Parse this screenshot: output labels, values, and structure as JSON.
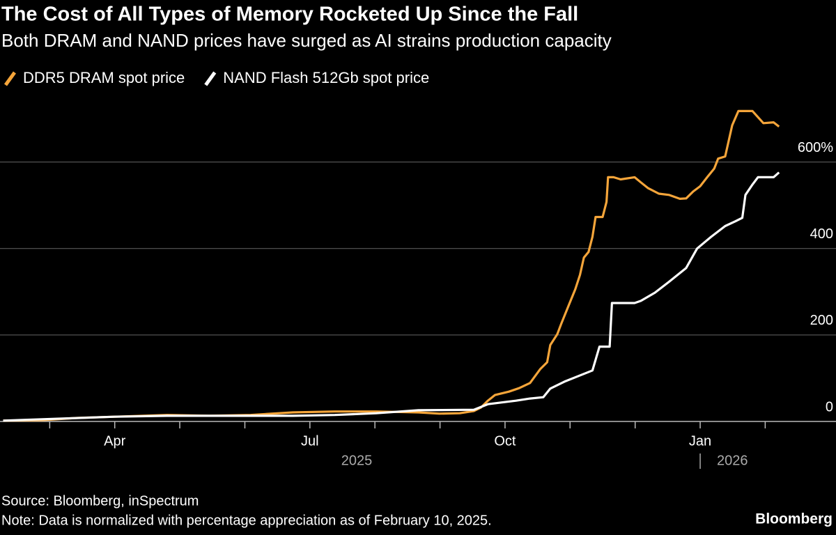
{
  "chart_data": {
    "type": "line",
    "title": "The Cost of All Types of Memory Rocketed Up Since the Fall",
    "subtitle": "Both DRAM and NAND prices have surged as AI strains production capacity",
    "source": "Source: Bloomberg, inSpectrum",
    "note": "Note: Data is normalized with percentage appreciation as of February 10, 2025.",
    "brand": "Bloomberg",
    "xlim": [
      2025.103,
      2026.174
    ],
    "ylim": [
      0,
      730
    ],
    "yticks": [
      0,
      200,
      400,
      {
        "value": 600,
        "label": "600%"
      }
    ],
    "xticks": [
      {
        "value": 2025.1667,
        "label": null
      },
      {
        "value": 2025.25,
        "label": "Apr"
      },
      {
        "value": 2025.3333,
        "label": null
      },
      {
        "value": 2025.4167,
        "label": null
      },
      {
        "value": 2025.5,
        "label": "Jul"
      },
      {
        "value": 2025.5833,
        "label": null
      },
      {
        "value": 2025.6667,
        "label": null
      },
      {
        "value": 2025.75,
        "label": "Oct"
      },
      {
        "value": 2025.8333,
        "label": null
      },
      {
        "value": 2025.9167,
        "label": null
      },
      {
        "value": 2026.0,
        "label": "Jan"
      },
      {
        "value": 2026.0833,
        "label": null
      }
    ],
    "x_year_labels": [
      {
        "value": 2025.56,
        "label": "2025"
      },
      {
        "value": 2026.0,
        "label": "2026"
      }
    ],
    "grid": true,
    "legend": "top-left",
    "series": [
      {
        "name": "DDR5 DRAM spot price",
        "color": "#f5a53a",
        "x": [
          2025.107,
          2025.157,
          2025.201,
          2025.25,
          2025.317,
          2025.371,
          2025.424,
          2025.478,
          2025.532,
          2025.585,
          2025.639,
          2025.666,
          2025.692,
          2025.71,
          2025.719,
          2025.728,
          2025.737,
          2025.755,
          2025.768,
          2025.782,
          2025.795,
          2025.804,
          2025.808,
          2025.817,
          2025.822,
          2025.831,
          2025.84,
          2025.846,
          2025.851,
          2025.857,
          2025.862,
          2025.866,
          2025.875,
          2025.88,
          2025.882,
          2025.889,
          2025.898,
          2025.916,
          2025.924,
          2025.933,
          2025.947,
          2025.96,
          2025.974,
          2025.982,
          2025.991,
          2026.0,
          2026.009,
          2026.018,
          2026.023,
          2026.032,
          2026.036,
          2026.041,
          2026.049,
          2026.067,
          2026.081,
          2026.094,
          2026.101
        ],
        "values": [
          2,
          3,
          8,
          11,
          15,
          13,
          15,
          21,
          23,
          23,
          21,
          18,
          19,
          24,
          32,
          48,
          61,
          69,
          77,
          89,
          121,
          137,
          177,
          202,
          226,
          266,
          306,
          339,
          379,
          392,
          427,
          473,
          473,
          508,
          565,
          565,
          560,
          565,
          553,
          540,
          527,
          524,
          515,
          516,
          532,
          544,
          565,
          585,
          608,
          613,
          645,
          685,
          718,
          718,
          690,
          692,
          682
        ]
      },
      {
        "name": "NAND Flash 512Gb spot price",
        "color": "#ffffff",
        "x": [
          2025.107,
          2025.25,
          2025.317,
          2025.478,
          2025.532,
          2025.585,
          2025.639,
          2025.71,
          2025.728,
          2025.746,
          2025.764,
          2025.782,
          2025.799,
          2025.808,
          2025.826,
          2025.844,
          2025.862,
          2025.871,
          2025.884,
          2025.887,
          2025.916,
          2025.924,
          2025.942,
          2025.96,
          2025.982,
          2025.996,
          2026.014,
          2026.032,
          2026.045,
          2026.054,
          2026.058,
          2026.067,
          2026.074,
          2026.094,
          2026.101
        ],
        "values": [
          2,
          11,
          13,
          13,
          15,
          19,
          26,
          27,
          40,
          44,
          48,
          53,
          56,
          76,
          92,
          105,
          118,
          173,
          173,
          274,
          274,
          279,
          298,
          323,
          355,
          400,
          427,
          452,
          463,
          471,
          524,
          548,
          565,
          565,
          576
        ]
      }
    ]
  }
}
